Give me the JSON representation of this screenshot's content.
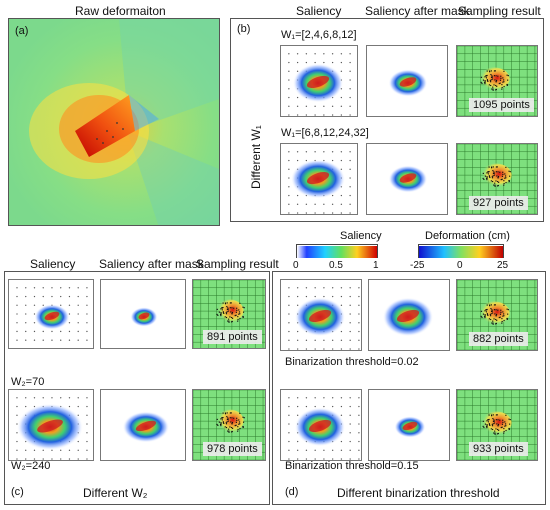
{
  "raw": {
    "title": "Raw deformaiton",
    "label": "(a)"
  },
  "b": {
    "label": "(b)",
    "col1": "Saliency",
    "col2": "Saliency after mask",
    "col3": "Sampling result",
    "side": "Different W₁",
    "row1": {
      "param": "W₁=[2,4,6,8,12]",
      "count": "1095 points"
    },
    "row2": {
      "param": "W₁=[6,8,12,24,32]",
      "count": "927 points"
    }
  },
  "c": {
    "label": "(c)",
    "caption": "Different W₂",
    "col1": "Saliency",
    "col2": "Saliency after mask",
    "col3": "Sampling result",
    "row1": {
      "param": "W₂=70",
      "count": "891 points"
    },
    "row2": {
      "param": "W₂=240",
      "count": "978 points"
    }
  },
  "d": {
    "label": "(d)",
    "caption": "Different binarization threshold",
    "row1": {
      "param": "Binarization threshold=0.02",
      "count": "882 points"
    },
    "row2": {
      "param": "Binarization threshold=0.15",
      "count": "933 points"
    }
  },
  "colorbars": {
    "saliency": {
      "title": "Saliency",
      "ticks": [
        "0",
        "0.5",
        "1"
      ]
    },
    "deformation": {
      "title": "Deformation (cm)",
      "ticks": [
        "-25",
        "0",
        "25"
      ]
    }
  },
  "colors": {
    "border": "#555555",
    "field_green": "#7ee07e"
  }
}
